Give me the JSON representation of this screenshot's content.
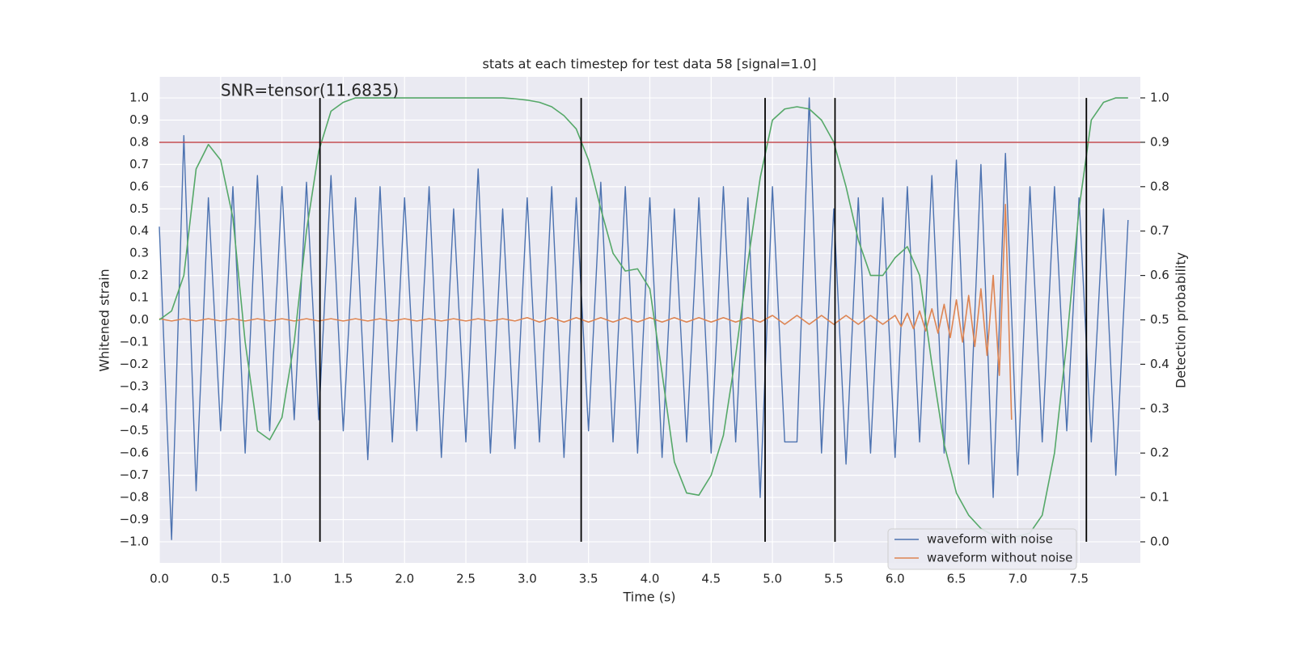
{
  "chart_data": {
    "type": "line",
    "title": "stats at each timestep for test data 58 [signal=1.0]",
    "annotation": {
      "text": "SNR=tensor(11.6835)",
      "x": 0.5,
      "y": 1.03
    },
    "xlabel": "Time (s)",
    "ylabel": "Whitened strain",
    "y2label": "Detection probability",
    "grid": true,
    "legend": "lower right",
    "xlim": [
      0,
      8.0
    ],
    "ylim": [
      -1.095,
      1.095
    ],
    "y2lim": [
      -0.0474,
      1.0474
    ],
    "xticks": [
      {
        "value": 0,
        "label": "0.0"
      },
      0.5,
      {
        "value": 1,
        "label": "1.0"
      },
      1.5,
      {
        "value": 2,
        "label": "2.0"
      },
      2.5,
      {
        "value": 3,
        "label": "3.0"
      },
      3.5,
      {
        "value": 4,
        "label": "4.0"
      },
      4.5,
      {
        "value": 5,
        "label": "5.0"
      },
      5.5,
      {
        "value": 6,
        "label": "6.0"
      },
      6.5,
      {
        "value": 7,
        "label": "7.0"
      },
      7.5
    ],
    "yticks": [
      {
        "value": -1,
        "label": "−1.0"
      },
      {
        "value": -0.9,
        "label": "−0.9"
      },
      {
        "value": -0.8,
        "label": "−0.8"
      },
      {
        "value": -0.7,
        "label": "−0.7"
      },
      {
        "value": -0.6,
        "label": "−0.6"
      },
      {
        "value": -0.5,
        "label": "−0.5"
      },
      {
        "value": -0.4,
        "label": "−0.4"
      },
      {
        "value": -0.3,
        "label": "−0.3"
      },
      {
        "value": -0.2,
        "label": "−0.2"
      },
      {
        "value": -0.1,
        "label": "−0.1"
      },
      {
        "value": 0,
        "label": "0.0"
      },
      0.1,
      0.2,
      0.3,
      0.4,
      0.5,
      0.6,
      0.7,
      0.8,
      0.9,
      {
        "value": 1,
        "label": "1.0"
      }
    ],
    "y2ticks": [
      {
        "value": 0,
        "label": "0.0"
      },
      0.1,
      0.2,
      0.3,
      0.4,
      0.5,
      0.6,
      0.7,
      0.8,
      0.9,
      {
        "value": 1,
        "label": "1.0"
      }
    ],
    "x": [
      0.0,
      0.1,
      0.2,
      0.3,
      0.4,
      0.5,
      0.6,
      0.7,
      0.8,
      0.9,
      1.0,
      1.1,
      1.2,
      1.3,
      1.4,
      1.5,
      1.6,
      1.7,
      1.8,
      1.9,
      2.0,
      2.1,
      2.2,
      2.3,
      2.4,
      2.5,
      2.6,
      2.7,
      2.8,
      2.9,
      3.0,
      3.1,
      3.2,
      3.3,
      3.4,
      3.5,
      3.6,
      3.7,
      3.8,
      3.9,
      4.0,
      4.1,
      4.2,
      4.3,
      4.4,
      4.5,
      4.6,
      4.7,
      4.8,
      4.9,
      5.0,
      5.1,
      5.2,
      5.3,
      5.4,
      5.5,
      5.6,
      5.7,
      5.8,
      5.9,
      6.0,
      6.1,
      6.2,
      6.3,
      6.4,
      6.5,
      6.6,
      6.7,
      6.8,
      6.9,
      7.0,
      7.1,
      7.2,
      7.3,
      7.4,
      7.5,
      7.6,
      7.7,
      7.8,
      7.9
    ],
    "series": [
      {
        "name": "waveform with noise",
        "color": "#4c72b0",
        "values": [
          0.42,
          -0.99,
          0.83,
          -0.77,
          0.55,
          -0.5,
          0.6,
          -0.6,
          0.65,
          -0.5,
          0.6,
          -0.45,
          0.62,
          -0.45,
          0.65,
          -0.5,
          0.55,
          -0.63,
          0.6,
          -0.55,
          0.55,
          -0.5,
          0.6,
          -0.62,
          0.5,
          -0.55,
          0.68,
          -0.6,
          0.5,
          -0.58,
          0.55,
          -0.55,
          0.6,
          -0.62,
          0.55,
          -0.5,
          0.62,
          -0.55,
          0.6,
          -0.6,
          0.55,
          -0.62,
          0.5,
          -0.55,
          0.55,
          -0.6,
          0.6,
          -0.55,
          0.55,
          -0.8,
          0.6,
          -0.55,
          -0.55,
          1.0,
          -0.6,
          0.5,
          -0.65,
          0.55,
          -0.6,
          0.55,
          -0.62,
          0.6,
          -0.55,
          0.65,
          -0.6,
          0.72,
          -0.65,
          0.7,
          -0.8,
          0.75,
          -0.7,
          0.6,
          -0.55,
          0.6,
          -0.5,
          0.55,
          -0.55,
          0.5,
          -0.7,
          0.45
        ]
      },
      {
        "name": "waveform without noise",
        "color": "#dd8452",
        "x": [
          0.0,
          0.1,
          0.2,
          0.3,
          0.4,
          0.5,
          0.6,
          0.7,
          0.8,
          0.9,
          1.0,
          1.1,
          1.2,
          1.3,
          1.4,
          1.5,
          1.6,
          1.7,
          1.8,
          1.9,
          2.0,
          2.1,
          2.2,
          2.3,
          2.4,
          2.5,
          2.6,
          2.7,
          2.8,
          2.9,
          3.0,
          3.1,
          3.2,
          3.3,
          3.4,
          3.5,
          3.6,
          3.7,
          3.8,
          3.9,
          4.0,
          4.1,
          4.2,
          4.3,
          4.4,
          4.5,
          4.6,
          4.7,
          4.8,
          4.9,
          5.0,
          5.1,
          5.2,
          5.3,
          5.4,
          5.5,
          5.6,
          5.7,
          5.8,
          5.9,
          6.0,
          6.05,
          6.1,
          6.15,
          6.2,
          6.25,
          6.3,
          6.35,
          6.4,
          6.45,
          6.5,
          6.55,
          6.6,
          6.65,
          6.7,
          6.75,
          6.8,
          6.85,
          6.9,
          6.95
        ],
        "values": [
          0.005,
          -0.005,
          0.005,
          -0.005,
          0.005,
          -0.005,
          0.005,
          -0.005,
          0.005,
          -0.005,
          0.005,
          -0.005,
          0.005,
          -0.005,
          0.005,
          -0.005,
          0.005,
          -0.005,
          0.005,
          -0.005,
          0.005,
          -0.005,
          0.005,
          -0.005,
          0.005,
          -0.005,
          0.005,
          -0.005,
          0.005,
          -0.005,
          0.01,
          -0.01,
          0.01,
          -0.01,
          0.01,
          -0.01,
          0.01,
          -0.01,
          0.01,
          -0.01,
          0.01,
          -0.01,
          0.01,
          -0.01,
          0.01,
          -0.01,
          0.01,
          -0.01,
          0.01,
          -0.01,
          0.02,
          -0.02,
          0.02,
          -0.02,
          0.02,
          -0.02,
          0.02,
          -0.02,
          0.02,
          -0.02,
          0.02,
          -0.03,
          0.03,
          -0.04,
          0.04,
          -0.05,
          0.05,
          -0.06,
          0.07,
          -0.08,
          0.09,
          -0.1,
          0.11,
          -0.12,
          0.14,
          -0.16,
          0.2,
          -0.25,
          0.52,
          -0.45
        ]
      },
      {
        "color": "#55a868",
        "axis": "y2",
        "values": [
          0.5,
          0.52,
          0.6,
          0.84,
          0.895,
          0.86,
          0.73,
          0.45,
          0.25,
          0.23,
          0.28,
          0.45,
          0.7,
          0.88,
          0.97,
          0.99,
          1.0,
          1.0,
          1.0,
          1.0,
          1.0,
          1.0,
          1.0,
          1.0,
          1.0,
          1.0,
          1.0,
          1.0,
          1.0,
          0.998,
          0.995,
          0.99,
          0.98,
          0.96,
          0.93,
          0.86,
          0.75,
          0.65,
          0.61,
          0.615,
          0.57,
          0.38,
          0.18,
          0.11,
          0.105,
          0.15,
          0.24,
          0.42,
          0.63,
          0.82,
          0.95,
          0.975,
          0.98,
          0.975,
          0.95,
          0.9,
          0.8,
          0.68,
          0.6,
          0.6,
          0.64,
          0.665,
          0.6,
          0.4,
          0.22,
          0.11,
          0.06,
          0.03,
          0.015,
          0.01,
          0.012,
          0.02,
          0.06,
          0.2,
          0.45,
          0.75,
          0.95,
          0.99,
          1.0,
          1.0
        ]
      }
    ],
    "vlines": {
      "color": "#000000",
      "x": [
        1.31,
        3.44,
        4.94,
        5.51,
        7.56
      ]
    },
    "hline": {
      "color": "#c44e52",
      "y": 0.8
    }
  }
}
